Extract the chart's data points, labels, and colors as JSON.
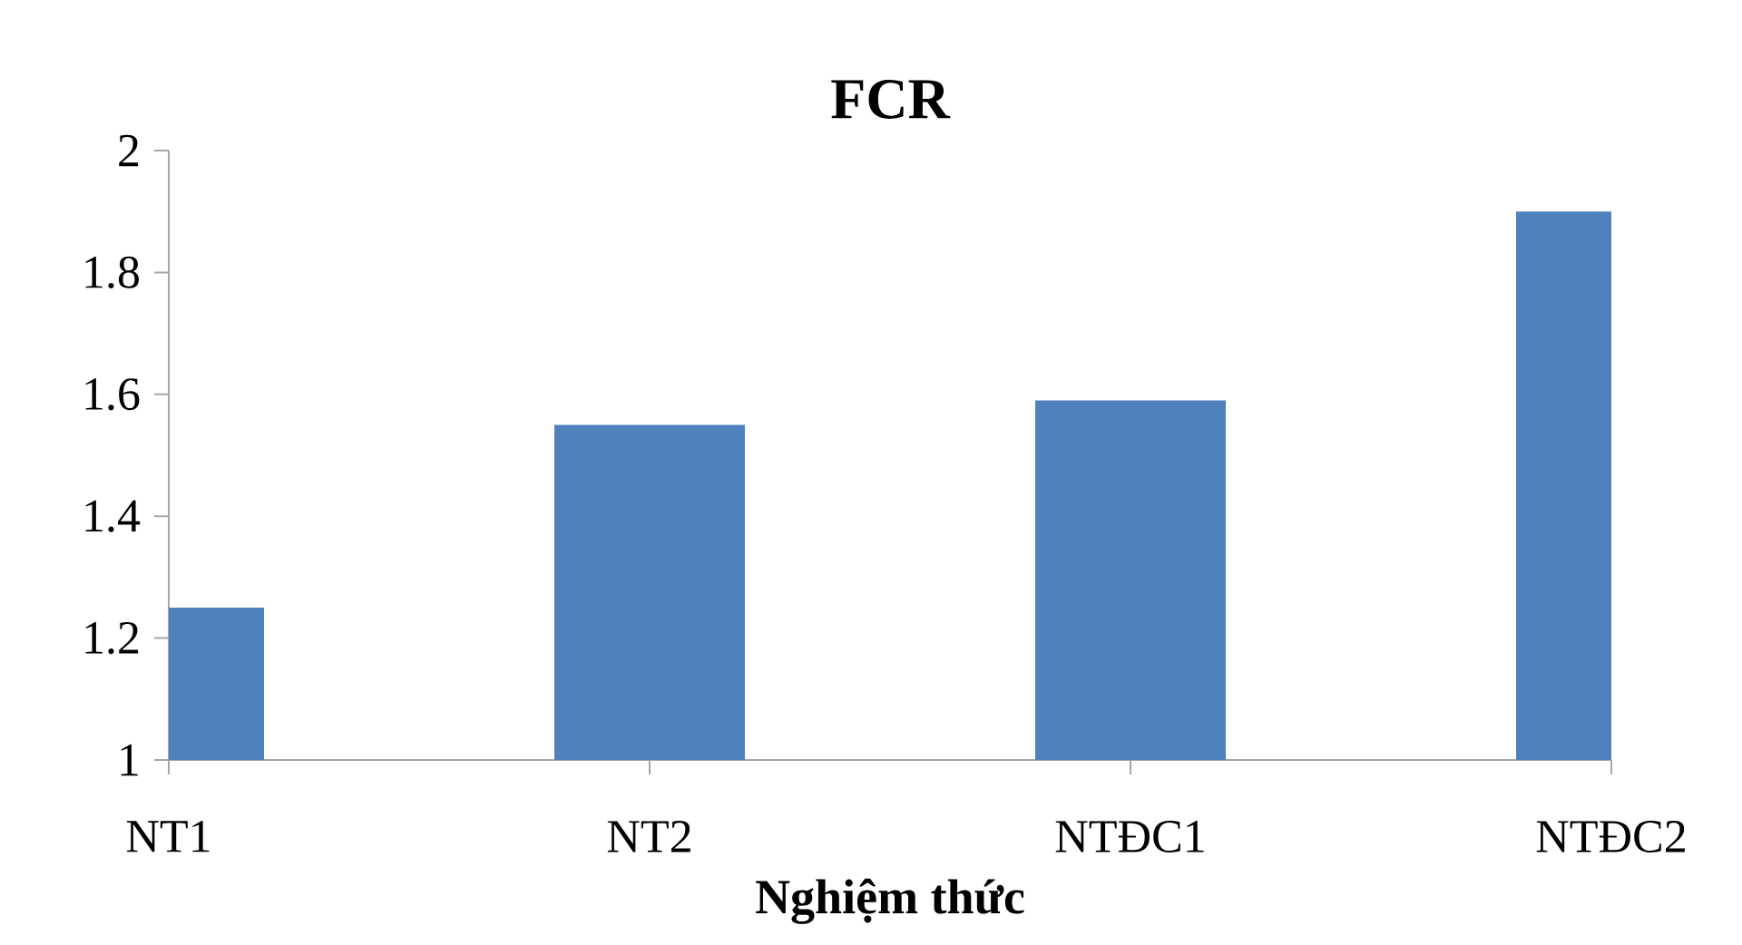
{
  "chart_data": {
    "type": "bar",
    "title": "FCR",
    "xlabel": "Nghiệm thức",
    "categories": [
      "NT1",
      "NT2",
      "NTĐC1",
      "NTĐC2"
    ],
    "values": [
      1.25,
      1.55,
      1.59,
      1.9
    ],
    "color": "#4f81bd",
    "ylim": [
      1,
      2
    ],
    "yticks": [
      1,
      1.2,
      1.4,
      1.6,
      1.8,
      2
    ]
  }
}
